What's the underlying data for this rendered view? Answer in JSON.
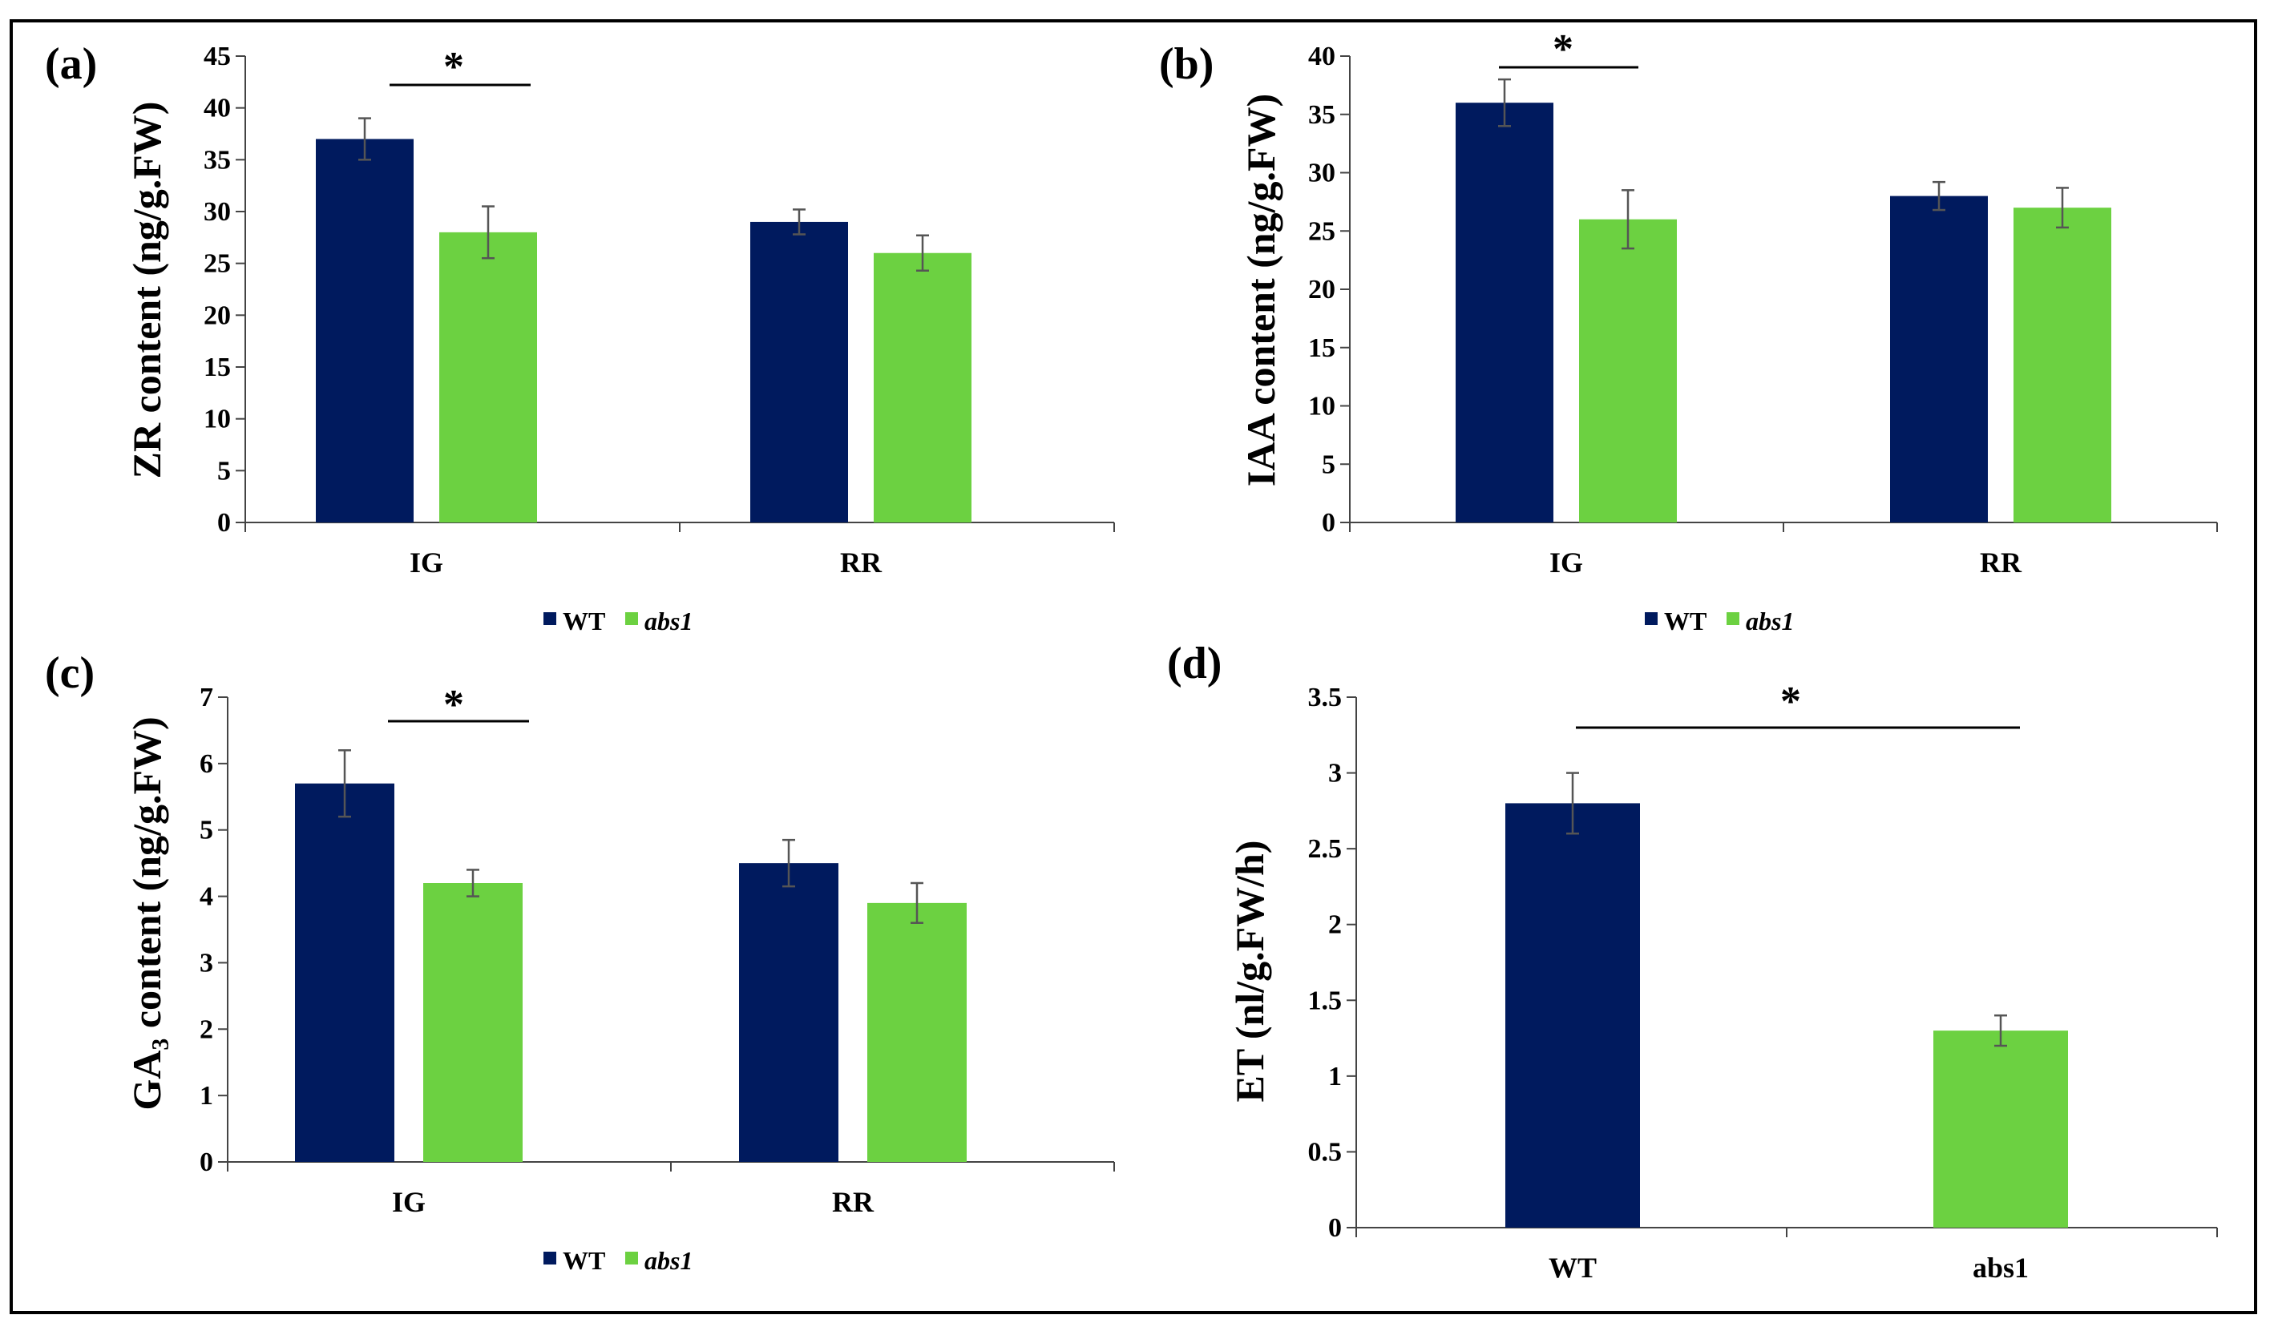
{
  "colors": {
    "wt": "#001a5e",
    "abs1": "#6cd141",
    "axis": "#444444",
    "errorbar": "#555555"
  },
  "chart_data": [
    {
      "type": "bar",
      "panel_label": "(a)",
      "ylabel": "ZR content (ng/g.FW)",
      "ylim": [
        0,
        45
      ],
      "yticks": [
        "0",
        "5",
        "10",
        "15",
        "20",
        "25",
        "30",
        "35",
        "40",
        "45"
      ],
      "categories": [
        "IG",
        "RR"
      ],
      "series": [
        {
          "name": "WT",
          "values": [
            37,
            29
          ],
          "errors": [
            2.0,
            1.2
          ]
        },
        {
          "name": "abs1",
          "values": [
            28,
            26
          ],
          "errors": [
            2.5,
            1.7
          ]
        }
      ],
      "significance": "*",
      "legend": "bottom-center"
    },
    {
      "type": "bar",
      "panel_label": "(b)",
      "ylabel": "IAA content (ng/g.FW)",
      "ylim": [
        0,
        40
      ],
      "yticks": [
        "0",
        "5",
        "10",
        "15",
        "20",
        "25",
        "30",
        "35",
        "40"
      ],
      "categories": [
        "IG",
        "RR"
      ],
      "series": [
        {
          "name": "WT",
          "values": [
            36,
            28
          ],
          "errors": [
            2.0,
            1.2
          ]
        },
        {
          "name": "abs1",
          "values": [
            26,
            27
          ],
          "errors": [
            2.5,
            1.7
          ]
        }
      ],
      "significance": "*",
      "legend": "bottom-center"
    },
    {
      "type": "bar",
      "panel_label": "(c)",
      "ylabel": "GA₃ content (ng/g.FW)",
      "ylim": [
        0,
        7
      ],
      "yticks": [
        "0",
        "1",
        "2",
        "3",
        "4",
        "5",
        "6",
        "7"
      ],
      "categories": [
        "IG",
        "RR"
      ],
      "series": [
        {
          "name": "WT",
          "values": [
            5.7,
            4.5
          ],
          "errors": [
            0.5,
            0.35
          ]
        },
        {
          "name": "abs1",
          "values": [
            4.2,
            3.9
          ],
          "errors": [
            0.2,
            0.3
          ]
        }
      ],
      "significance": "*",
      "legend": "bottom-center"
    },
    {
      "type": "bar",
      "panel_label": "(d)",
      "ylabel": "ET (nl/g.FW/h)",
      "ylim": [
        0,
        3.5
      ],
      "yticks": [
        "0",
        "0.5",
        "1",
        "1.5",
        "2",
        "2.5",
        "3",
        "3.5"
      ],
      "categories": [
        "WT",
        "abs1"
      ],
      "values": [
        2.8,
        1.3
      ],
      "errors": [
        0.2,
        0.1
      ],
      "significance": "*"
    }
  ]
}
